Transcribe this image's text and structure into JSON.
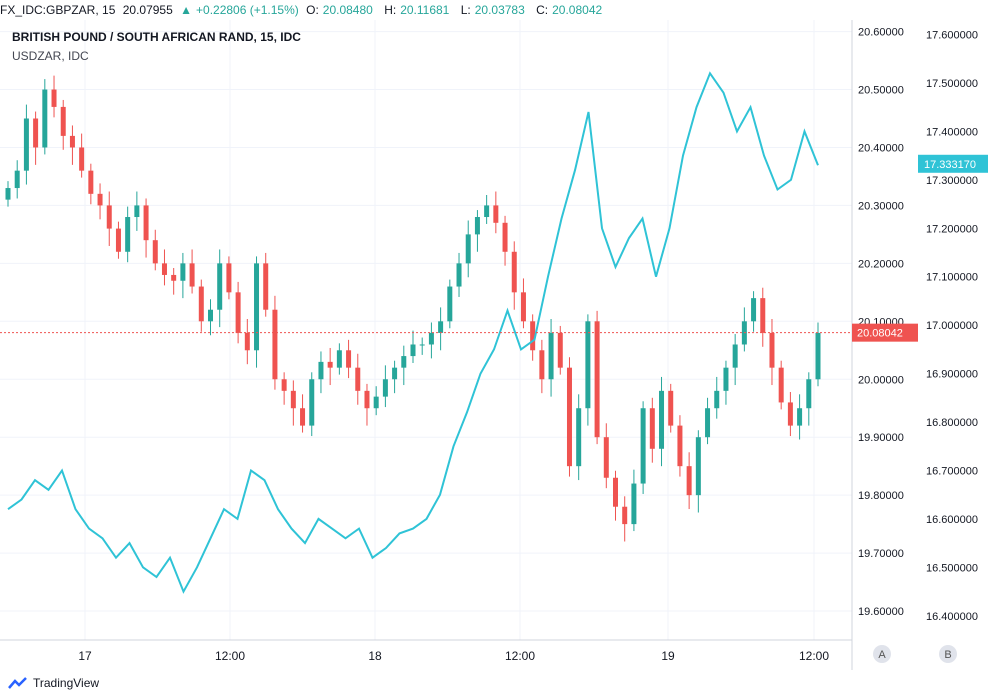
{
  "header": {
    "symbol": "FX_IDC:GBPZAR, 15",
    "last": "20.07955",
    "change": "+0.22806 (+1.15%)",
    "open_label": "O:",
    "open": "20.08480",
    "high_label": "H:",
    "high": "20.11681",
    "low_label": "L:",
    "low": "20.03783",
    "close_label": "C:",
    "close": "20.08042"
  },
  "legend": {
    "main": "BRITISH POUND / SOUTH AFRICAN RAND, 15, IDC",
    "compare": "USDZAR, IDC"
  },
  "footer": {
    "brand": "TradingView"
  },
  "scale_buttons": [
    "A",
    "B"
  ],
  "colors": {
    "up": "#26a69a",
    "down": "#ef5350",
    "compare_line": "#2fc3d6",
    "price_line": "#ef5350",
    "grid": "#f0f3fa"
  },
  "chart_data": {
    "type": "candlestick",
    "main_series": {
      "name": "BRITISH POUND / SOUTH AFRICAN RAND, 15, IDC",
      "axis": "left-price-scale",
      "ylim": [
        19.55,
        20.62
      ],
      "last_value": "20.08042"
    },
    "compare_series": {
      "name": "USDZAR, IDC",
      "axis": "right-price-scale",
      "ylim": [
        16.35,
        17.63
      ],
      "last_value": "17.333170"
    },
    "x_ticks": [
      "17",
      "12:00",
      "18",
      "12:00",
      "19",
      "12:00"
    ],
    "left_axis_ticks": [
      "20.60000",
      "20.50000",
      "20.40000",
      "20.30000",
      "20.20000",
      "20.10000",
      "20.00000",
      "19.90000",
      "19.80000",
      "19.70000",
      "19.60000"
    ],
    "right_axis_ticks": [
      "17.600000",
      "17.500000",
      "17.400000",
      "17.300000",
      "17.200000",
      "17.100000",
      "17.000000",
      "16.900000",
      "16.800000",
      "16.700000",
      "16.600000",
      "16.500000",
      "16.400000"
    ],
    "candle_closes": [
      20.33,
      20.36,
      20.45,
      20.4,
      20.5,
      20.47,
      20.42,
      20.4,
      20.36,
      20.32,
      20.3,
      20.26,
      20.22,
      20.28,
      20.3,
      20.24,
      20.2,
      20.18,
      20.17,
      20.2,
      20.16,
      20.1,
      20.12,
      20.2,
      20.15,
      20.08,
      20.05,
      20.2,
      20.12,
      20.0,
      19.98,
      19.95,
      19.92,
      20.0,
      20.03,
      20.02,
      20.05,
      20.02,
      19.98,
      19.95,
      19.97,
      20.0,
      20.02,
      20.04,
      20.06,
      20.06,
      20.08,
      20.1,
      20.16,
      20.2,
      20.25,
      20.28,
      20.3,
      20.27,
      20.22,
      20.15,
      20.1,
      20.05,
      20.0,
      20.08,
      20.02,
      19.85,
      19.95,
      20.1,
      19.9,
      19.83,
      19.78,
      19.75,
      19.82,
      19.95,
      19.88,
      19.98,
      19.92,
      19.85,
      19.8,
      19.9,
      19.95,
      19.98,
      20.02,
      20.06,
      20.1,
      20.14,
      20.08,
      20.02,
      19.96,
      19.92,
      19.95,
      20.0,
      20.08
    ],
    "compare_points": [
      16.62,
      16.64,
      16.68,
      16.66,
      16.7,
      16.62,
      16.58,
      16.56,
      16.52,
      16.55,
      16.5,
      16.48,
      16.52,
      16.45,
      16.5,
      16.56,
      16.62,
      16.6,
      16.7,
      16.68,
      16.62,
      16.58,
      16.55,
      16.6,
      16.58,
      16.56,
      16.58,
      16.52,
      16.54,
      16.57,
      16.58,
      16.6,
      16.65,
      16.75,
      16.82,
      16.9,
      16.95,
      17.03,
      16.95,
      16.97,
      17.1,
      17.22,
      17.32,
      17.44,
      17.2,
      17.12,
      17.18,
      17.22,
      17.1,
      17.2,
      17.35,
      17.45,
      17.52,
      17.48,
      17.4,
      17.45,
      17.35,
      17.28,
      17.3,
      17.4,
      17.33
    ]
  }
}
